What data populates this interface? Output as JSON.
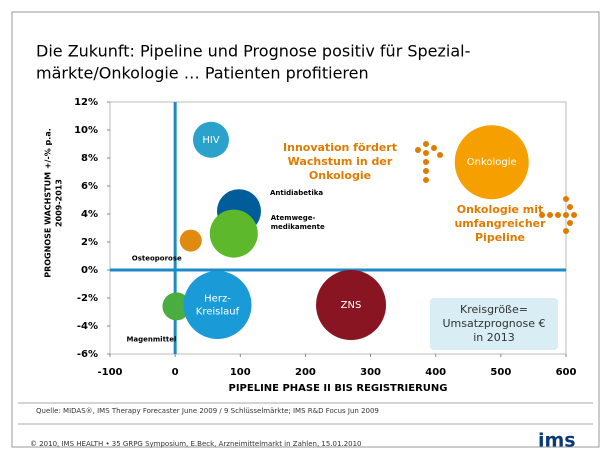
{
  "title_lines": [
    "Die Zukunft: Pipeline und Prognose positiv für Spezial-",
    "märkte/Onkologie … Patienten profitieren"
  ],
  "chart_data": {
    "type": "bubble",
    "x_label": "PIPELINE PHASE II BIS REGISTRIERUNG",
    "y_label_lines": [
      "PROGNOSE WACHSTUM +/-% p.a.",
      "2009-2013"
    ],
    "labels": [
      [
        "HIV"
      ],
      [
        "Antidiabetika"
      ],
      [
        "Atemwege-",
        "medikamente"
      ],
      [
        "Osteoporose"
      ],
      [
        "Magenmittel"
      ],
      [
        "Herz-",
        "Kreislauf"
      ],
      [
        "ZNS"
      ],
      [
        "Onkologie"
      ]
    ],
    "x": [
      55,
      98,
      90,
      24,
      2,
      65,
      270,
      486
    ],
    "values": [
      9.3,
      4.2,
      2.6,
      2.1,
      -2.6,
      -2.5,
      -2.5,
      7.7
    ],
    "sizes": [
      18,
      22,
      24,
      11,
      14,
      34,
      35,
      37
    ],
    "colors": [
      "#2ba2cc",
      "#005d99",
      "#5db82b",
      "#e08a10",
      "#49ad3f",
      "#1b9ad8",
      "#8a1522",
      "#f5a000"
    ],
    "xlim": [
      -100,
      600
    ],
    "xticks": [
      -100,
      0,
      100,
      200,
      300,
      400,
      500,
      600
    ],
    "ylim": [
      -6,
      12
    ],
    "yticks": [
      {
        "value": -6,
        "label": "-6%"
      },
      {
        "value": -4,
        "label": "-4%"
      },
      {
        "value": -2,
        "label": "-2%"
      },
      {
        "value": 0,
        "label": "0%"
      },
      {
        "value": 2,
        "label": "2%"
      },
      {
        "value": 4,
        "label": "4%"
      },
      {
        "value": 6,
        "label": "6%"
      },
      {
        "value": 8,
        "label": "8%"
      },
      {
        "value": 10,
        "label": "10%"
      },
      {
        "value": 12,
        "label": "12%"
      }
    ],
    "annotations": [
      [
        "Innovation fördert",
        "Wachstum in der",
        "Onkologie"
      ],
      [
        "Onkologie mit",
        "umfangreicher",
        "Pipeline"
      ]
    ],
    "legend_box": [
      "Kreisgröße=",
      "Umsatzprognose €",
      "in 2013"
    ]
  },
  "source": "Quelle: MIDAS®, IMS Therapy Forecaster June 2009 / 9 Schlüsselmärkte; IMS R&D Focus Jun 2009",
  "footer": "© 2010, IMS HEALTH  •  35  GRPG Symposium, E.Beck, Arzneimittelmarkt in Zahlen, 15.01.2010",
  "logo": "ims"
}
